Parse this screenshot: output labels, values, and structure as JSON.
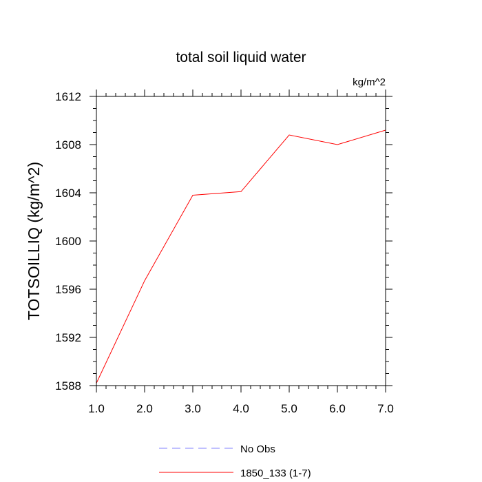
{
  "chart_data": {
    "type": "line",
    "title": "total soil liquid water",
    "units_label": "kg/m^2",
    "ylabel": "TOTSOILLIQ  (kg/m^2)",
    "xlabel": "",
    "xlim": [
      1.0,
      7.0
    ],
    "ylim": [
      1588,
      1612
    ],
    "x_ticks": [
      "1.0",
      "2.0",
      "3.0",
      "4.0",
      "5.0",
      "6.0",
      "7.0"
    ],
    "y_ticks": [
      "1588",
      "1592",
      "1596",
      "1600",
      "1604",
      "1608",
      "1612"
    ],
    "grid": false,
    "legend_position": "bottom",
    "series": [
      {
        "name": "No Obs",
        "color": "#8080ff",
        "dash": "dashed",
        "x": [],
        "y": []
      },
      {
        "name": "1850_133 (1-7)",
        "color": "#ff0000",
        "dash": "solid",
        "x": [
          1,
          2,
          3,
          4,
          5,
          6,
          7
        ],
        "y": [
          1588.2,
          1596.7,
          1603.8,
          1604.1,
          1608.8,
          1608.0,
          1609.2
        ]
      }
    ]
  }
}
